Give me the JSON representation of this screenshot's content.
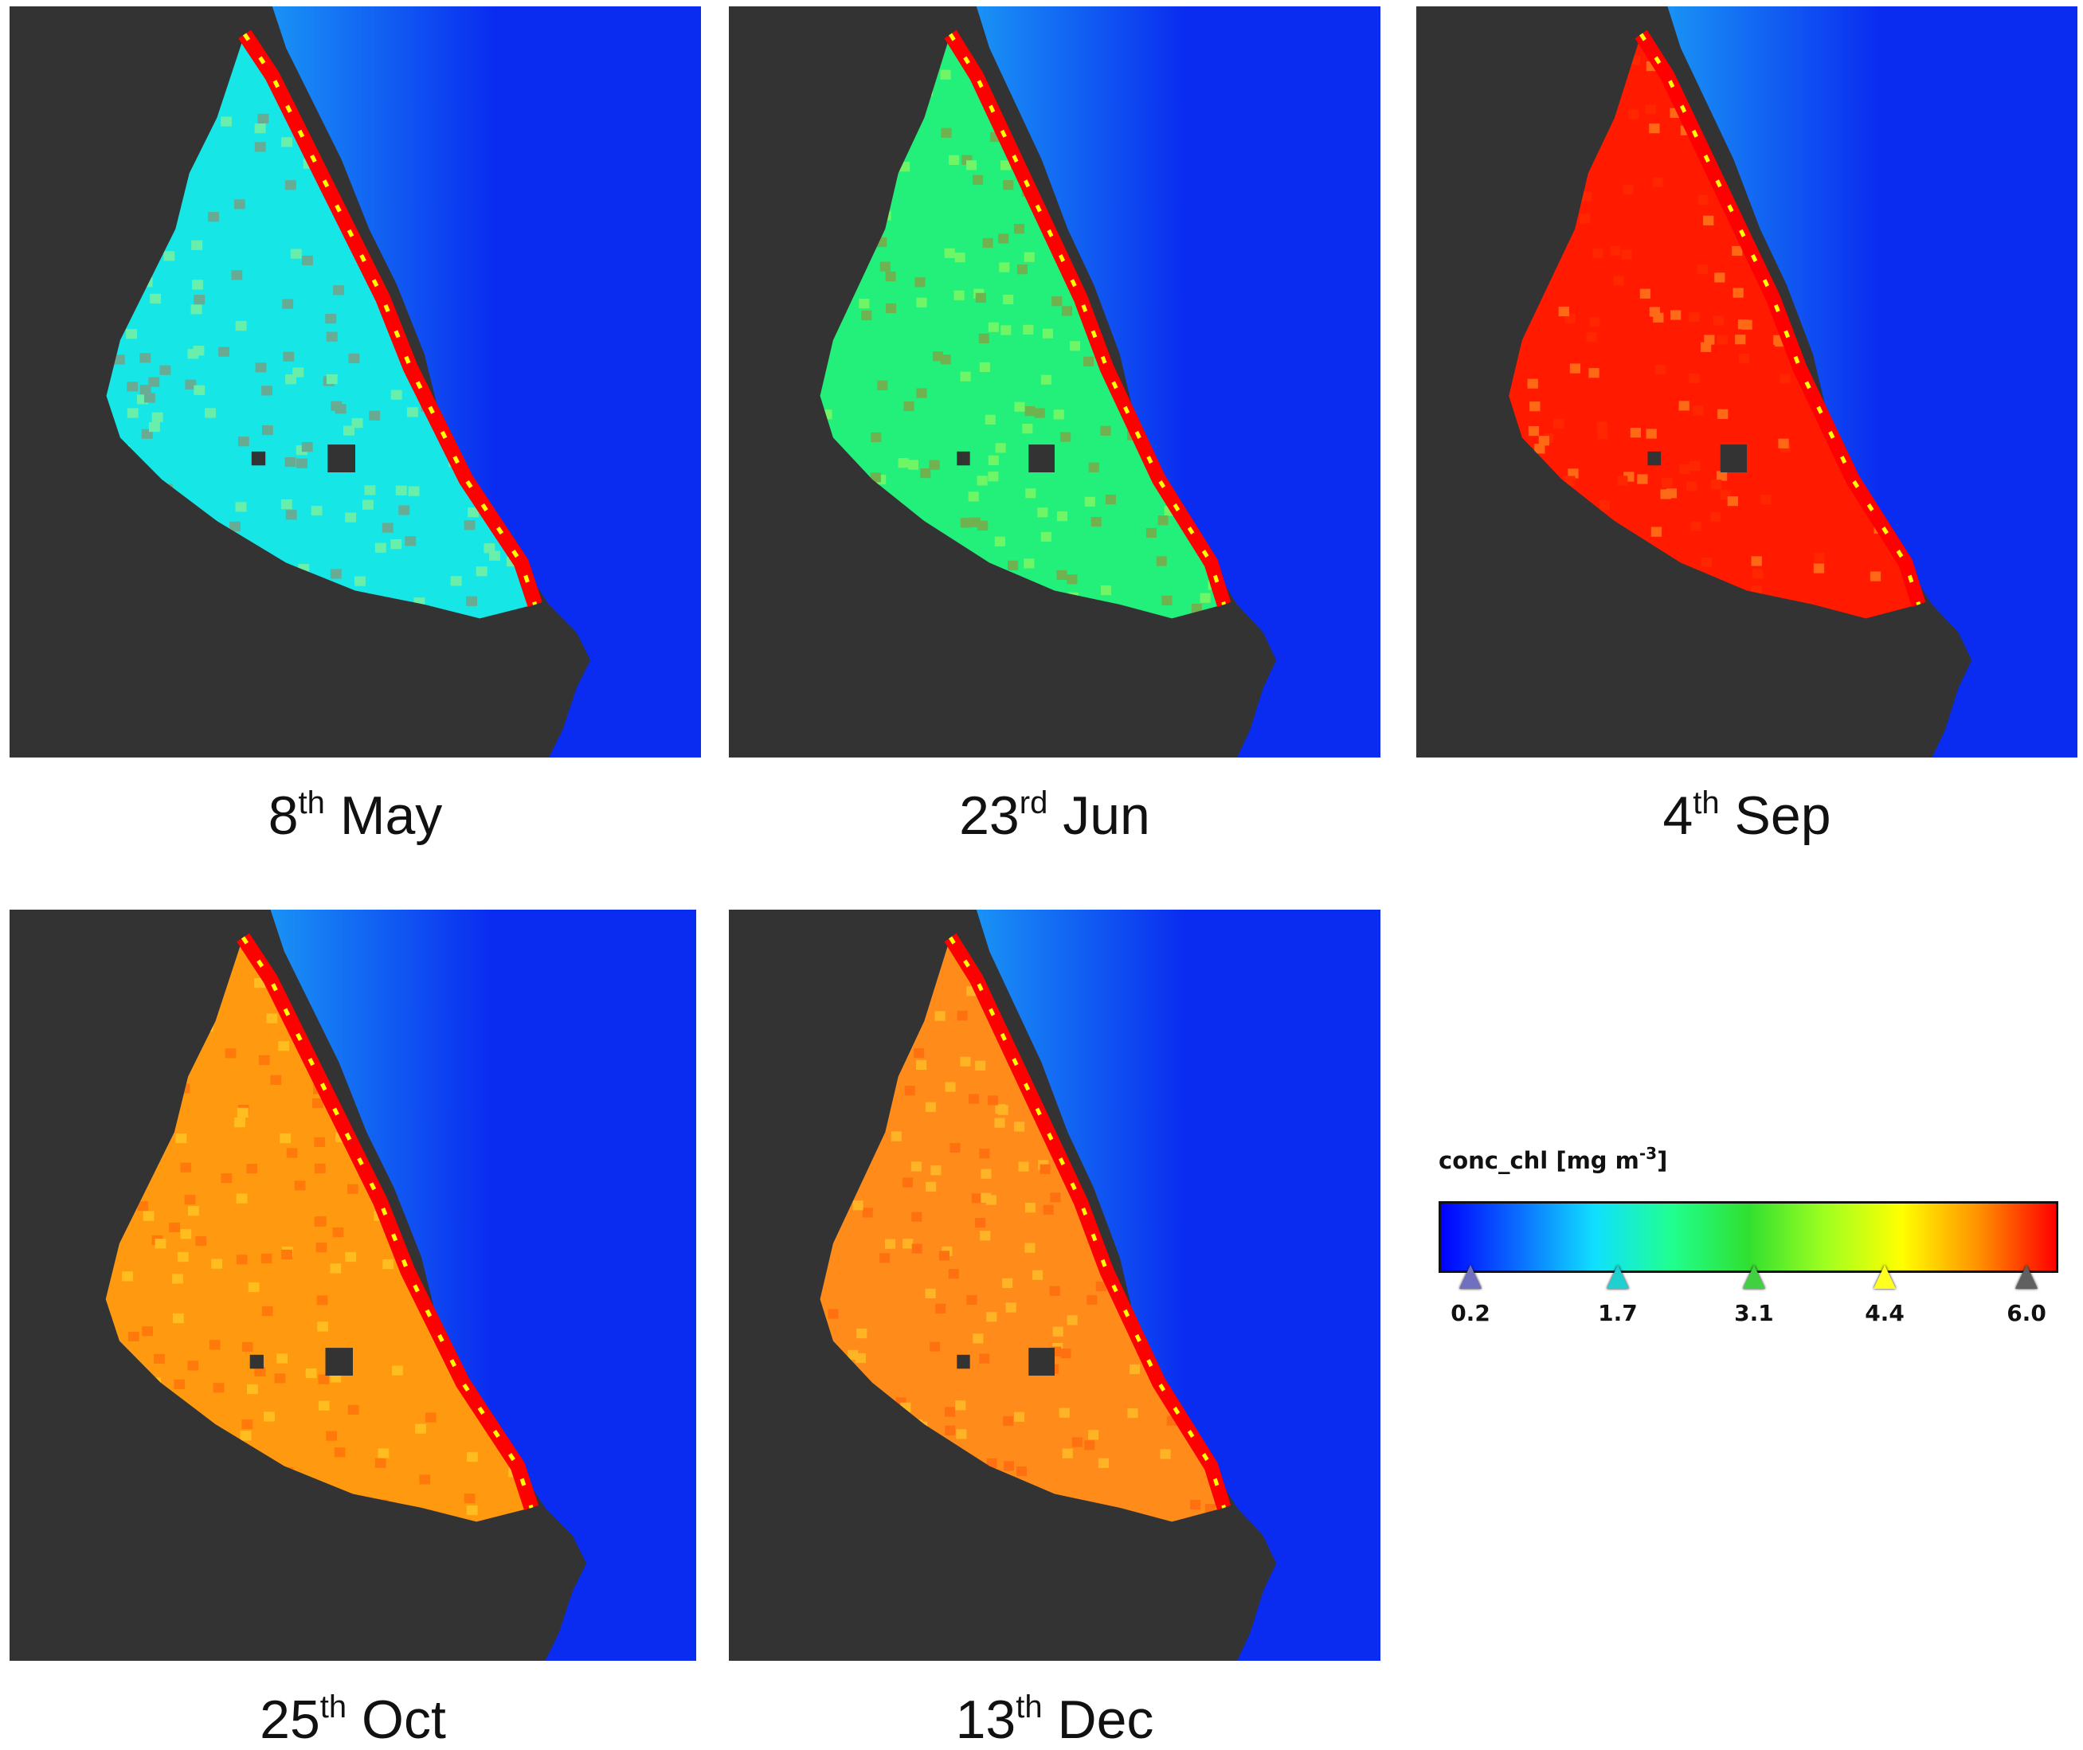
{
  "panels": [
    {
      "id": "may",
      "day": "8",
      "suffix": "th",
      "month": "May",
      "dominant_color": "#17e6e6",
      "shore_color": "#ff0000"
    },
    {
      "id": "jun",
      "day": "23",
      "suffix": "rd",
      "month": "Jun",
      "dominant_color": "#22f07a",
      "shore_color": "#ff0000"
    },
    {
      "id": "sep",
      "day": "4",
      "suffix": "th",
      "month": "Sep",
      "dominant_color": "#ff1a00",
      "shore_color": "#ff0000"
    },
    {
      "id": "oct",
      "day": "25",
      "suffix": "th",
      "month": "Oct",
      "dominant_color": "#ff9a10",
      "shore_color": "#ff0000"
    },
    {
      "id": "dec",
      "day": "13",
      "suffix": "th",
      "month": "Dec",
      "dominant_color": "#ff8c1a",
      "shore_color": "#ff0000"
    }
  ],
  "colors": {
    "land": "#333333",
    "ocean": "#0a2cf0",
    "coastal_water": "#1a9cf5"
  },
  "legend": {
    "title_main": "conc_chl [mg m",
    "title_exp": "-3",
    "title_close": "]",
    "ticks": [
      {
        "label": "0.2",
        "fraction": 0.0,
        "color": "#7070c0"
      },
      {
        "label": "1.7",
        "fraction": 0.265,
        "color": "#20d0d0"
      },
      {
        "label": "3.1",
        "fraction": 0.51,
        "color": "#40d040"
      },
      {
        "label": "4.4",
        "fraction": 0.745,
        "color": "#ffff20"
      },
      {
        "label": "6.0",
        "fraction": 1.0,
        "color": "#606060"
      }
    ],
    "gradient": [
      "#0000ff",
      "#0a6cff",
      "#10e0ff",
      "#20ff90",
      "#30e030",
      "#a0ff20",
      "#ffff00",
      "#ff9000",
      "#ff0000"
    ]
  }
}
